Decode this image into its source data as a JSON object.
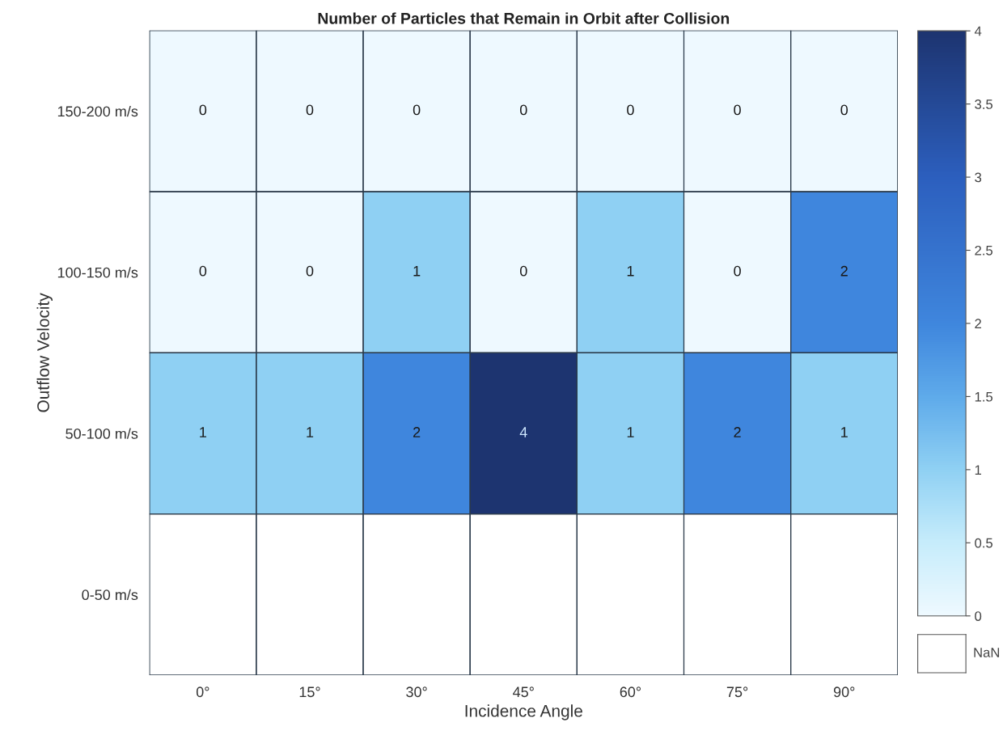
{
  "chart_data": {
    "type": "heatmap",
    "title": "Number of Particles that Remain in Orbit after Collision",
    "xlabel": "Incidence Angle",
    "ylabel": "Outflow Velocity",
    "categories": [
      "0°",
      "15°",
      "30°",
      "45°",
      "60°",
      "75°",
      "90°"
    ],
    "y_categories": [
      "150-200 m/s",
      "100-150 m/s",
      "50-100 m/s",
      "0-50 m/s"
    ],
    "cells": [
      [
        0,
        0,
        0,
        0,
        0,
        0,
        0
      ],
      [
        0,
        0,
        1,
        0,
        1,
        0,
        2
      ],
      [
        1,
        1,
        2,
        4,
        1,
        2,
        1
      ],
      [
        null,
        null,
        null,
        null,
        null,
        null,
        null
      ]
    ],
    "data_labels": true,
    "clim": [
      0,
      4
    ],
    "cticks": [
      0,
      0.5,
      1,
      1.5,
      2,
      2.5,
      3,
      3.5,
      4
    ],
    "annotations": [
      "NaN"
    ]
  }
}
